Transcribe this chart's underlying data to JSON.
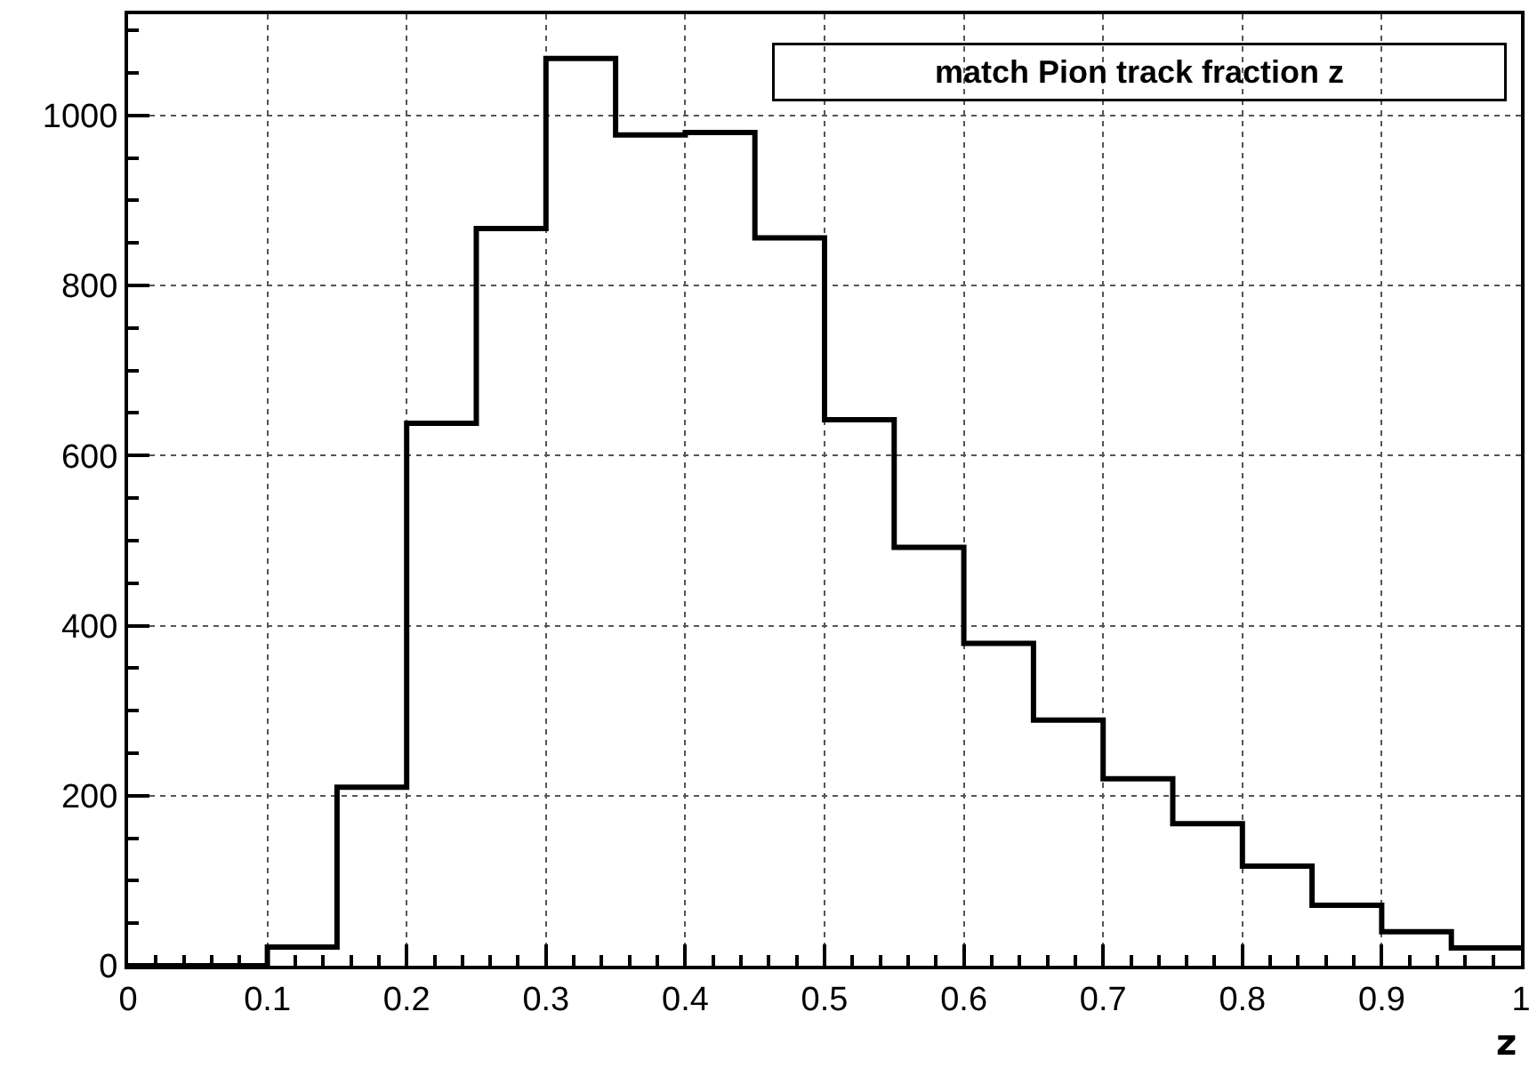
{
  "chart_data": {
    "type": "histogram",
    "title": "match Pion track fraction z",
    "xlabel": "z",
    "bins": [
      0,
      0.05,
      0.1,
      0.15,
      0.2,
      0.25,
      0.3,
      0.35,
      0.4,
      0.45,
      0.5,
      0.55,
      0.6,
      0.65,
      0.7,
      0.75,
      0.8,
      0.85,
      0.9,
      0.95,
      1
    ],
    "values": [
      0,
      0,
      22,
      210,
      638,
      867,
      1067,
      977,
      980,
      856,
      642,
      492,
      379,
      289,
      220,
      167,
      117,
      71,
      40,
      21
    ],
    "color": "#000000",
    "xlim": [
      0,
      1
    ],
    "xticks": [
      0,
      0.1,
      0.2,
      0.3,
      0.4,
      0.5,
      0.6,
      0.7,
      0.8,
      0.9,
      1
    ],
    "ylim": [
      0,
      1119
    ],
    "yticks": [
      0,
      200,
      400,
      600,
      800,
      1000
    ],
    "grid": true,
    "legend": false
  }
}
